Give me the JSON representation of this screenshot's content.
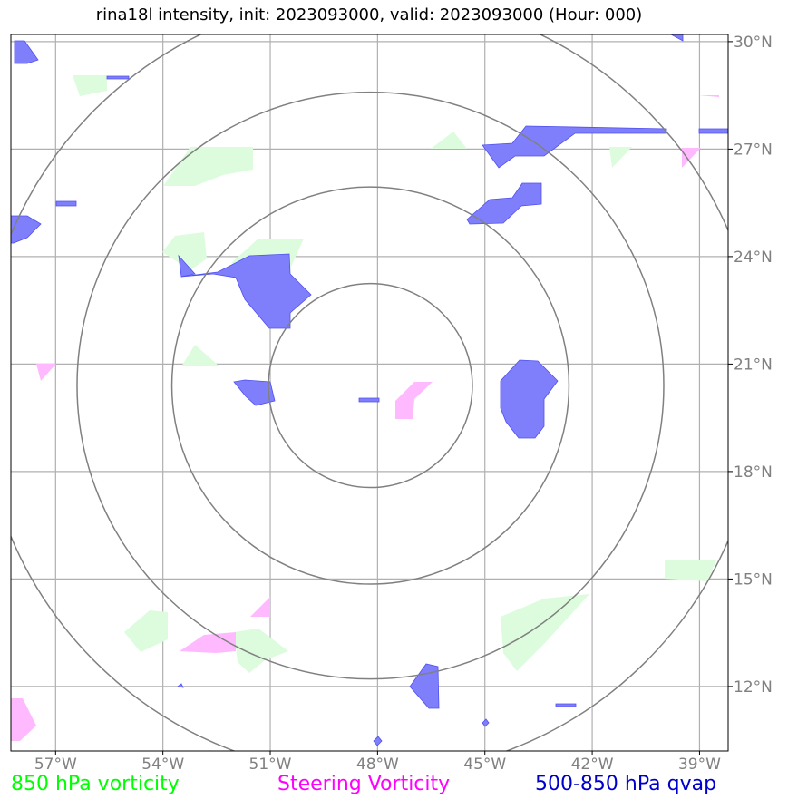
{
  "title": "rina18l intensity, init: 2023093000, valid: 2023093000 (Hour: 000)",
  "lon_ticks": [
    "57°W",
    "54°W",
    "51°W",
    "48°W",
    "45°W",
    "42°W",
    "39°W"
  ],
  "lat_ticks": [
    "30°N",
    "27°N",
    "24°N",
    "21°N",
    "18°N",
    "15°N",
    "12°N"
  ],
  "map": {
    "lon_range": [
      -58.25,
      -38.2
    ],
    "lat_range": [
      10.2,
      30.2
    ],
    "center": {
      "lon": -48.2,
      "lat": 20.4
    },
    "range_rings_deg": [
      2.85,
      5.55,
      8.2,
      10.9
    ]
  },
  "legend": {
    "vort850": {
      "label": "850 hPa vorticity",
      "color": "#00ff00"
    },
    "steering": {
      "label": "Steering Vorticity",
      "color": "#ff00ff"
    },
    "qvap": {
      "label": "500-850 hPa qvap",
      "color": "#0000cc"
    }
  },
  "colors": {
    "grid": "#b0b0b0",
    "rings": "#808080",
    "vort_fill": "#ddfcdd",
    "steer_fill": "#ffbaff",
    "qvap_fill": "#7f7ffb",
    "tick_label": "#808080"
  }
}
